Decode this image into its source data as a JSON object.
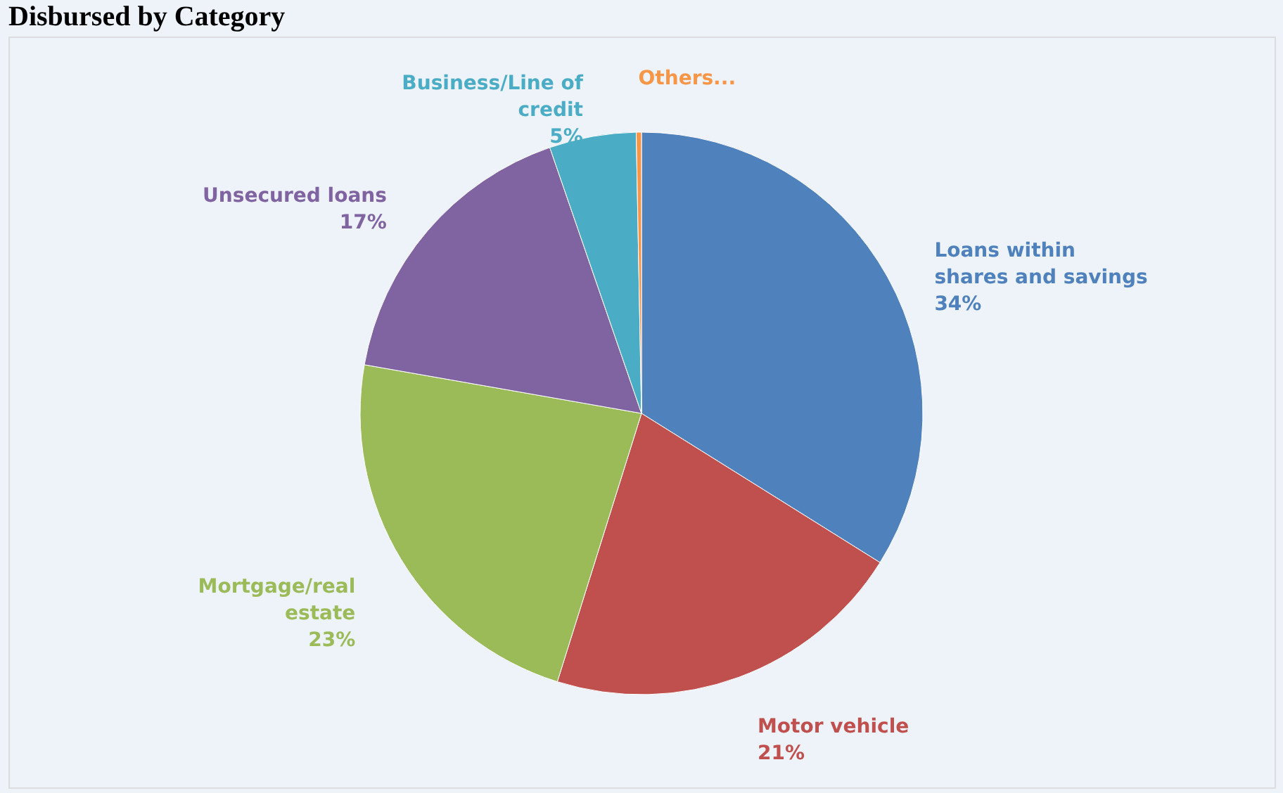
{
  "chart_data": {
    "type": "pie",
    "title": "Disbursed by Category",
    "categories": [
      "Loans within shares and savings",
      "Motor vehicle",
      "Mortgage/real estate",
      "Unsecured loans",
      "Business/Line of credit",
      "Others..."
    ],
    "values": [
      34,
      21,
      23,
      17,
      5,
      0.3
    ],
    "value_labels": [
      "34%",
      "21%",
      "23%",
      "17%",
      "5%",
      null
    ],
    "colors": [
      "#4f81bd",
      "#c0504d",
      "#9bbb59",
      "#8064a2",
      "#4bacc6",
      "#f79646"
    ],
    "legend": false
  }
}
